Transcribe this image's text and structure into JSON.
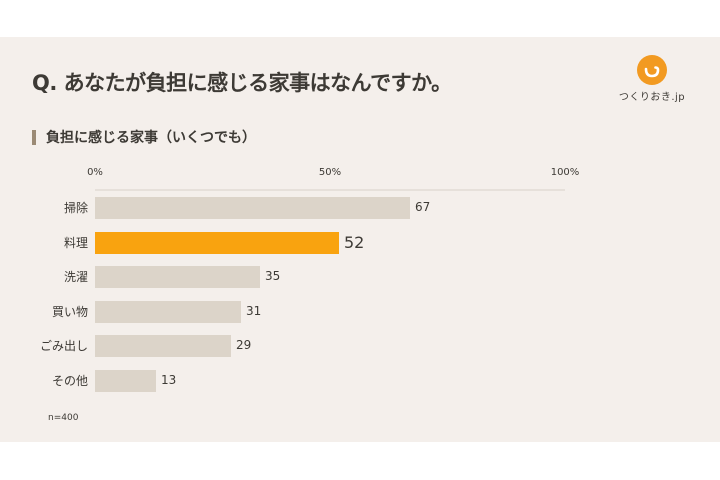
{
  "header": {
    "title": "Q. あなたが負担に感じる家事はなんですか。",
    "logo_text": "つくりおき.jp"
  },
  "subtitle": "負担に感じる家事（いくつでも）",
  "axis": {
    "ticks": [
      "0%",
      "50%",
      "100%"
    ]
  },
  "note": "n=400",
  "colors": {
    "background": "#f4efeb",
    "bar_default": "#dcd4c9",
    "bar_highlight": "#f9a30f",
    "logo": "#f29a21",
    "text": "#3d3a35"
  },
  "chart_data": {
    "type": "bar",
    "orientation": "horizontal",
    "title": "Q. あなたが負担に感じる家事はなんですか。",
    "subtitle": "負担に感じる家事（いくつでも）",
    "categories": [
      "掃除",
      "料理",
      "洗濯",
      "買い物",
      "ごみ出し",
      "その他"
    ],
    "values": [
      67,
      52,
      35,
      31,
      29,
      13
    ],
    "value_labels": [
      "67",
      "52",
      "35",
      "31",
      "29",
      "13"
    ],
    "highlight_index": 1,
    "xlabel": "",
    "ylabel": "",
    "xlim": [
      0,
      100
    ],
    "x_ticks": [
      "0%",
      "50%",
      "100%"
    ],
    "grid": false,
    "legend": null,
    "annotation": "n=400"
  }
}
